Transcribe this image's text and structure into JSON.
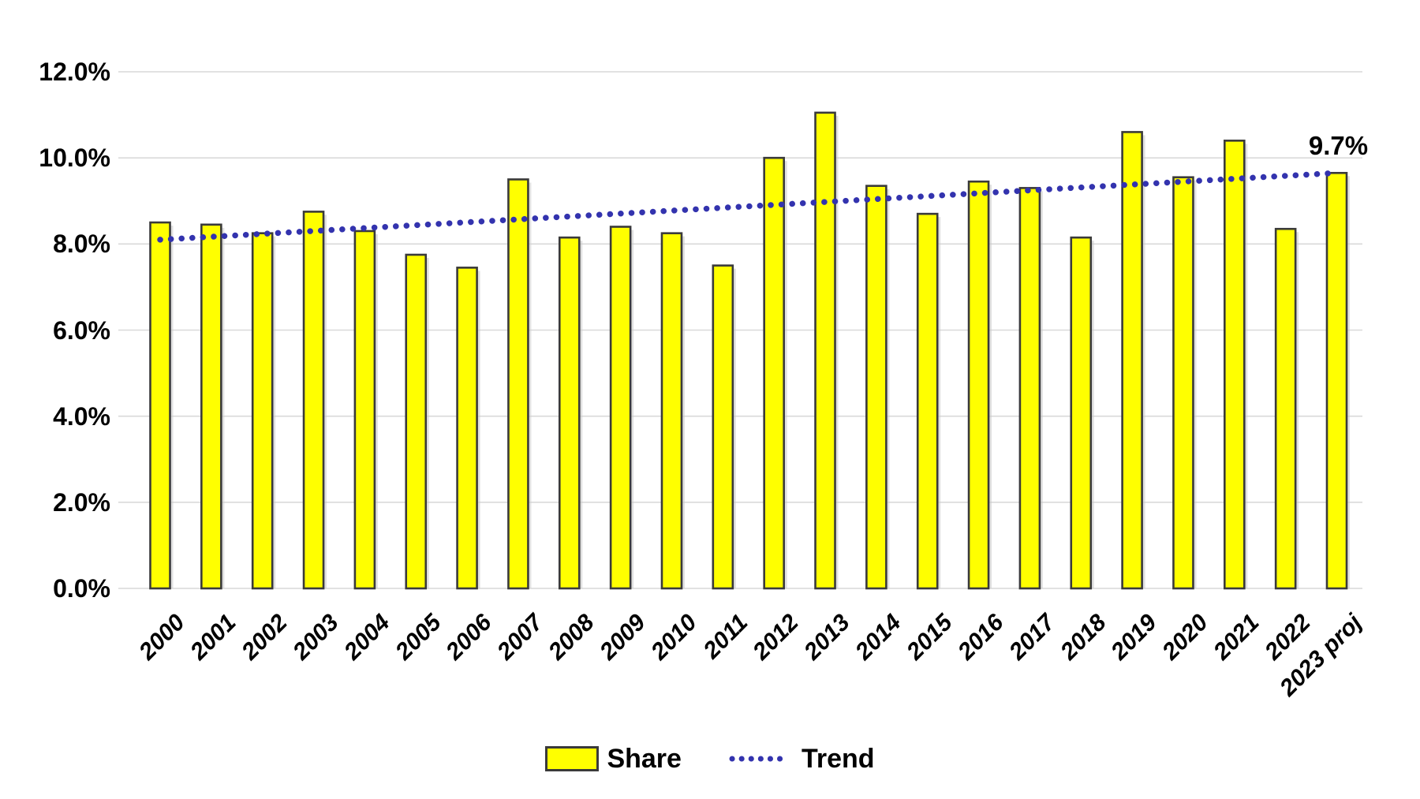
{
  "chart_data": {
    "type": "bar",
    "title": "",
    "xlabel": "",
    "ylabel": "",
    "categories": [
      "2000",
      "2001",
      "2002",
      "2003",
      "2004",
      "2005",
      "2006",
      "2007",
      "2008",
      "2009",
      "2010",
      "2011",
      "2012",
      "2013",
      "2014",
      "2015",
      "2016",
      "2017",
      "2018",
      "2019",
      "2020",
      "2021",
      "2022",
      "2023 proj"
    ],
    "series": [
      {
        "name": "Share",
        "type": "bar",
        "values": [
          8.5,
          8.45,
          8.25,
          8.75,
          8.3,
          7.75,
          7.45,
          9.5,
          8.15,
          8.4,
          8.25,
          7.5,
          10.0,
          11.05,
          9.35,
          8.7,
          9.45,
          9.3,
          8.15,
          10.6,
          9.55,
          10.4,
          8.35,
          9.65
        ]
      },
      {
        "name": "Trend",
        "type": "dotted-line",
        "start_value": 8.1,
        "end_value": 9.65
      }
    ],
    "ylim": [
      0,
      12
    ],
    "ytick_step": 2,
    "ytick_labels": [
      "0.0%",
      "2.0%",
      "4.0%",
      "6.0%",
      "8.0%",
      "10.0%",
      "12.0%"
    ],
    "grid": "horizontal",
    "annotation": {
      "text": "9.7%",
      "category": "2023 proj",
      "value": 9.7
    },
    "legend": {
      "position": "bottom",
      "share_label": "Share",
      "trend_label": "Trend"
    },
    "colors": {
      "bar_fill": "#ffff00",
      "bar_border": "#3a3a3a",
      "bar_shadow": "#c9c9c9",
      "trend_line": "#3333ae",
      "gridline": "#d9d9d9",
      "text": "#000000",
      "background": "#ffffff"
    }
  }
}
